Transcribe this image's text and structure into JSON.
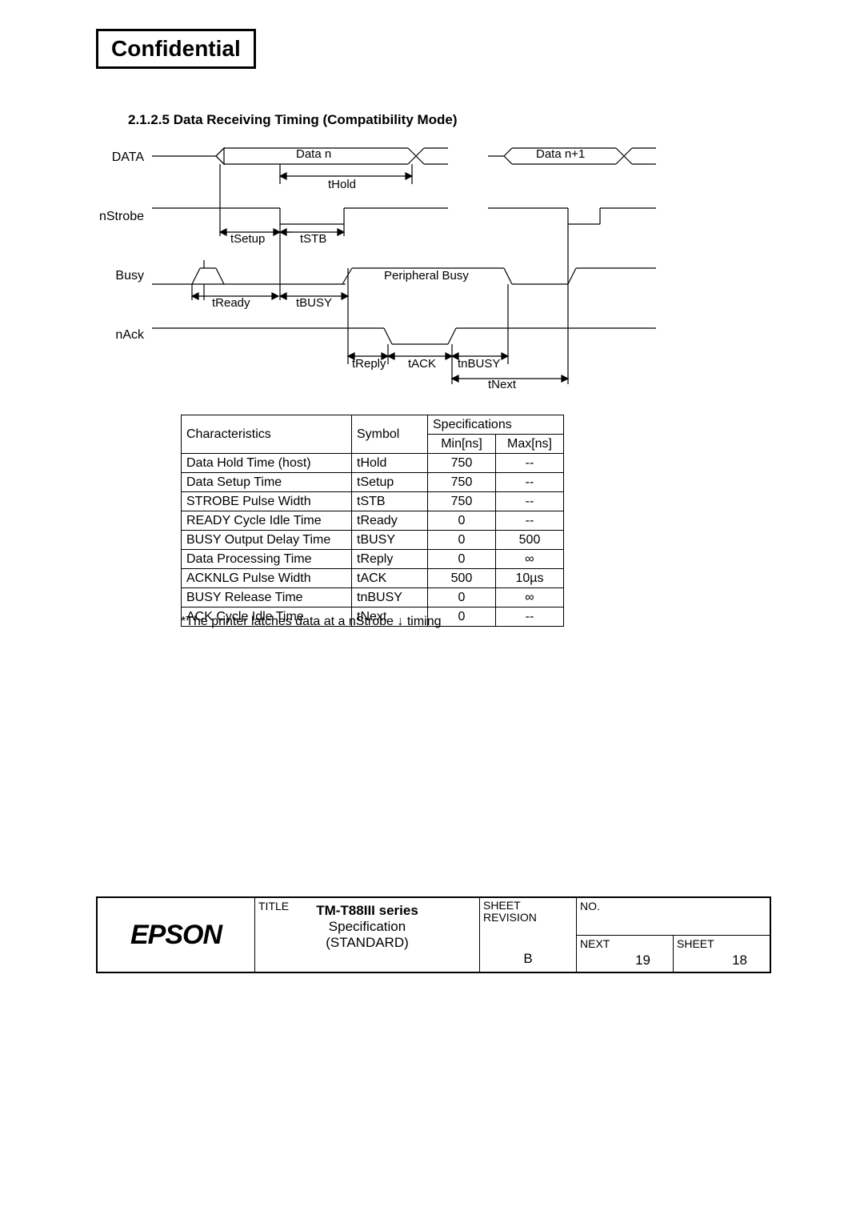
{
  "header": {
    "confidential": "Confidential"
  },
  "section": {
    "title": "2.1.2.5 Data Receiving Timing (Compatibility Mode)"
  },
  "diagram": {
    "signals": {
      "data": "DATA",
      "nstrobe": "nStrobe",
      "busy": "Busy",
      "nack": "nAck"
    },
    "labels": {
      "datan": "Data n",
      "datan1": "Data n+1",
      "thold": "tHold",
      "tsetup": "tSetup",
      "tstb": "tSTB",
      "tready": "tReady",
      "tbusy": "tBUSY",
      "periph_busy": "Peripheral Busy",
      "treply": "tReply",
      "tack": "tACK",
      "tnbusy": "tnBUSY",
      "tnext": "tNext"
    }
  },
  "table": {
    "headers": {
      "char": "Characteristics",
      "sym": "Symbol",
      "spec": "Specifications",
      "min": "Min[ns]",
      "max": "Max[ns]"
    },
    "rows": [
      {
        "c": "Data Hold Time (host)",
        "s": "tHold",
        "min": "750",
        "max": "--"
      },
      {
        "c": "Data Setup Time",
        "s": "tSetup",
        "min": "750",
        "max": "--"
      },
      {
        "c": "STROBE Pulse Width",
        "s": "tSTB",
        "min": "750",
        "max": "--"
      },
      {
        "c": "READY Cycle Idle Time",
        "s": "tReady",
        "min": "0",
        "max": "--"
      },
      {
        "c": "BUSY Output Delay Time",
        "s": "tBUSY",
        "min": "0",
        "max": "500"
      },
      {
        "c": "Data Processing Time",
        "s": "tReply",
        "min": "0",
        "max": "∞"
      },
      {
        "c": "ACKNLG Pulse Width",
        "s": "tACK",
        "min": "500",
        "max": "10µs"
      },
      {
        "c": "BUSY Release Time",
        "s": "tnBUSY",
        "min": "0",
        "max": "∞"
      },
      {
        "c": "ACK Cycle Idle Time",
        "s": "tNext",
        "min": "0",
        "max": "--"
      }
    ],
    "footnote": "*The printer latches data at a nStrobe ↓ timing"
  },
  "titleblock": {
    "logo": "EPSON",
    "title_label": "TITLE",
    "title_line1": "TM-T88III series",
    "title_line2": "Specification",
    "title_line3": "(STANDARD)",
    "rev_label": "SHEET\nREVISION",
    "rev": "B",
    "no_label": "NO.",
    "next_label": "NEXT",
    "next": "19",
    "sheet_label": "SHEET",
    "sheet": "18"
  }
}
